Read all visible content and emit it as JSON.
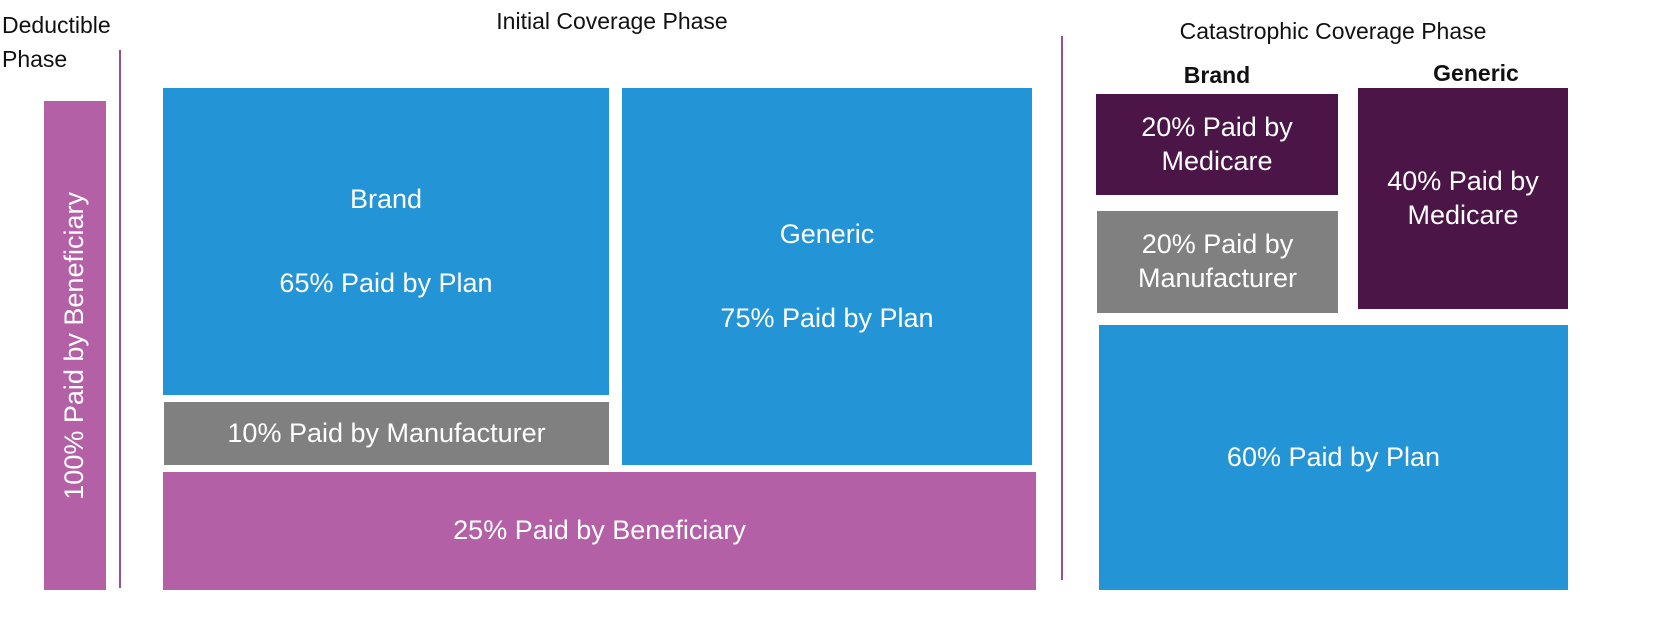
{
  "deductible_phase": {
    "title": "Deductible Phase",
    "box": "100% Paid by Beneficiary"
  },
  "initial_coverage_phase": {
    "title": "Initial Coverage Phase",
    "brand": {
      "label": "Brand",
      "plan": "65% Paid by Plan",
      "manufacturer": "10% Paid by Manufacturer"
    },
    "generic": {
      "label": "Generic",
      "plan": "75% Paid by Plan"
    },
    "beneficiary": "25% Paid by Beneficiary"
  },
  "catastrophic_coverage_phase": {
    "title": "Catastrophic Coverage Phase",
    "brand": {
      "label": "Brand",
      "medicare": "20% Paid by Medicare",
      "manufacturer": "20% Paid by Manufacturer"
    },
    "generic": {
      "label": "Generic",
      "medicare": "40% Paid by Medicare"
    },
    "plan": "60% Paid by Plan"
  }
}
